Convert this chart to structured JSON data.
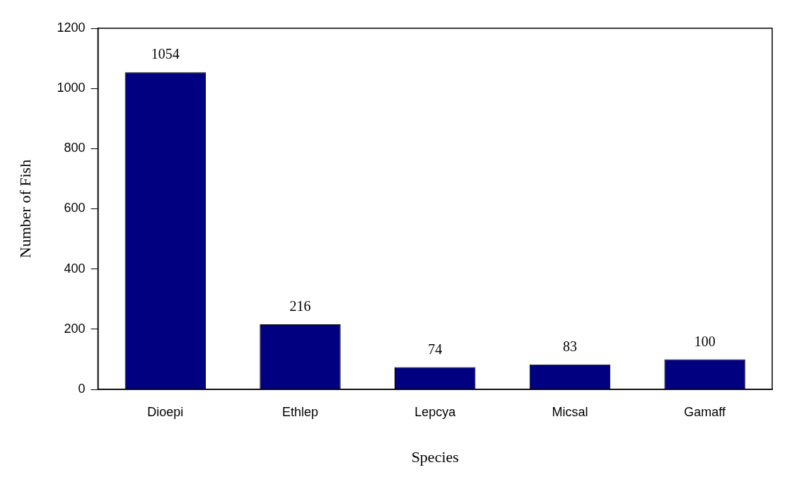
{
  "chart_data": {
    "type": "bar",
    "xlabel": "Species",
    "ylabel": "Number of Fish",
    "categories": [
      "Dioepi",
      "Ethlep",
      "Lepcya",
      "Micsal",
      "Gamaff"
    ],
    "values": [
      1054,
      216,
      74,
      83,
      100
    ],
    "color": "#000080",
    "ylim": [
      0,
      1200
    ],
    "yticks": [
      0,
      200,
      400,
      600,
      800,
      1000,
      1200
    ],
    "grid": false,
    "data_labels": true
  }
}
